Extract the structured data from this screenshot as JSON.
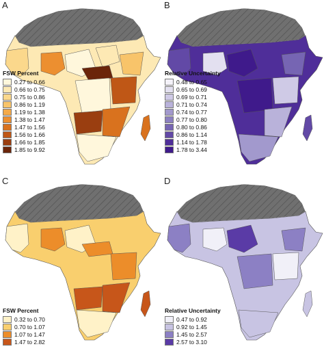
{
  "panels": [
    {
      "letter": "A",
      "legend_title": "FSW Percent",
      "legend": [
        {
          "label": "0.27 to 0.66",
          "color": "#fff7dc"
        },
        {
          "label": "0.66 to 0.75",
          "color": "#fde9b4"
        },
        {
          "label": "0.75 to 0.86",
          "color": "#fbd88c"
        },
        {
          "label": "0.86 to 1.19",
          "color": "#f8c46a"
        },
        {
          "label": "1.19 to 1.38",
          "color": "#f4aa4a"
        },
        {
          "label": "1.38 to 1.47",
          "color": "#ec8f30"
        },
        {
          "label": "1.47 to 1.56",
          "color": "#d9721e"
        },
        {
          "label": "1.56 to 1.66",
          "color": "#bf5716"
        },
        {
          "label": "1.66 to 1.85",
          "color": "#9a3e10"
        },
        {
          "label": "1.85 to 9.92",
          "color": "#6b250a"
        }
      ]
    },
    {
      "letter": "B",
      "legend_title": "Relative Uncertainty",
      "legend": [
        {
          "label": "0.48 to 0.65",
          "color": "#f4f2f9"
        },
        {
          "label": "0.65 to 0.69",
          "color": "#e3e0f0"
        },
        {
          "label": "0.69 to 0.71",
          "color": "#cfcae6"
        },
        {
          "label": "0.71 to 0.74",
          "color": "#b9b2da"
        },
        {
          "label": "0.74 to 0.77",
          "color": "#a299cd"
        },
        {
          "label": "0.77 to 0.80",
          "color": "#8c80c0"
        },
        {
          "label": "0.80 to 0.86",
          "color": "#7665b3"
        },
        {
          "label": "0.86 to 1.14",
          "color": "#6249a6"
        },
        {
          "label": "1.14 to 1.78",
          "color": "#4f2e99"
        },
        {
          "label": "1.78 to 3.44",
          "color": "#3f1a8b"
        }
      ]
    },
    {
      "letter": "C",
      "legend_title": "FSW Percent",
      "legend": [
        {
          "label": "0.32 to 0.70",
          "color": "#fff2c8"
        },
        {
          "label": "0.70 to 1.07",
          "color": "#f9cf6e"
        },
        {
          "label": "1.07 to 1.47",
          "color": "#ec8d2a"
        },
        {
          "label": "1.47 to 2.82",
          "color": "#c7561a"
        }
      ]
    },
    {
      "letter": "D",
      "legend_title": "Relative Uncertainty",
      "legend": [
        {
          "label": "0.47 to 0.92",
          "color": "#f1f0f8"
        },
        {
          "label": "0.92 to 1.45",
          "color": "#c8c4e3"
        },
        {
          "label": "1.45 to 2.57",
          "color": "#8c80c4"
        },
        {
          "label": "2.57 to 3.10",
          "color": "#5a3ba6"
        }
      ]
    }
  ]
}
